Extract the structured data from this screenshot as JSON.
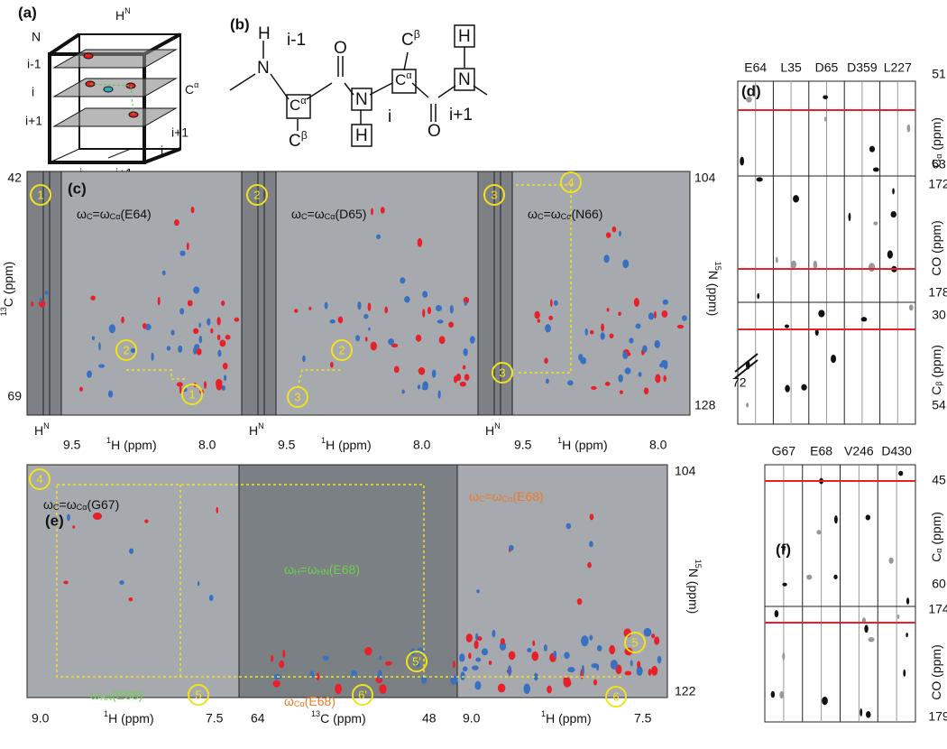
{
  "panel_a": {
    "label": "(a)",
    "hn": [
      "H",
      "N"
    ],
    "n": "N",
    "layers": [
      "i-1",
      "i",
      "i+1"
    ],
    "ca": [
      "C",
      "α"
    ],
    "side": [
      "i+1",
      "i"
    ],
    "bottom": [
      "i",
      "i+1"
    ]
  },
  "panel_b": {
    "label": "(b)",
    "h1": "H",
    "n1": "N",
    "res1": "i-1",
    "o1": "O",
    "cb1": [
      "C",
      "β"
    ],
    "ca1": [
      "C",
      "α"
    ],
    "n2": "N",
    "h2": "H",
    "ca2": [
      "C",
      "α"
    ],
    "cb2": [
      "C",
      "β"
    ],
    "res2": "i",
    "o2": "O",
    "h3": "H",
    "n3": "N",
    "res3": "i+1"
  },
  "panel_c": {
    "label": "(c)",
    "titles": [
      [
        "ω",
        "C",
        "=ω",
        "Cα",
        "(E64)"
      ],
      [
        "ω",
        "C",
        "=ω",
        "Cα",
        "(D65)"
      ],
      [
        "ω",
        "C",
        "=ω",
        "Cα",
        "(N66)"
      ]
    ],
    "hn": [
      [
        "H",
        "N"
      ],
      [
        "H",
        "N"
      ],
      [
        "H",
        "N"
      ]
    ],
    "x_ticks": [
      [
        "9.5",
        "8.0"
      ],
      [
        "9.5",
        "8.0"
      ],
      [
        "9.5",
        "8.0"
      ]
    ],
    "x_labels": [
      [
        "1",
        "H (ppm)"
      ],
      [
        "1",
        "H (ppm)"
      ],
      [
        "1",
        "H (ppm)"
      ]
    ],
    "y_left_ticks": [
      "42",
      "69"
    ],
    "y_left_label": [
      "13",
      "C (ppm)"
    ],
    "y_right_ticks": [
      "104",
      "128"
    ],
    "y_right_label": [
      "15",
      "N (ppm)"
    ],
    "markers": [
      "1",
      "2",
      "1",
      "2",
      "2",
      "3",
      "3",
      "4",
      "3"
    ]
  },
  "panel_e": {
    "label": "(e)",
    "title_left": [
      "ω",
      "C",
      "=ω",
      "Cα",
      "(G67)"
    ],
    "title_right": [
      "ω",
      "C",
      "=ω",
      "Cα",
      "(E68)"
    ],
    "title_mid": [
      "ω",
      "H",
      "=ω",
      "HN",
      "(E68)"
    ],
    "note_hn": [
      "ω",
      "HN",
      "(E68)"
    ],
    "note_ca": [
      "ω",
      "Cα",
      "(E68)"
    ],
    "x_ticks": [
      "9.0",
      "7.5",
      "64",
      "48",
      "9.0",
      "7.5"
    ],
    "x_labels": [
      [
        "1",
        "H (ppm)"
      ],
      [
        "13",
        "C (ppm)"
      ],
      [
        "1",
        "H (ppm)"
      ]
    ],
    "y_right_ticks": [
      "104",
      "122"
    ],
    "y_right_label": [
      "15",
      "N (ppm)"
    ],
    "markers": [
      "4",
      "5",
      "5'",
      "6'",
      "5",
      "6"
    ]
  },
  "panel_d": {
    "label": "(d)",
    "columns": [
      "E64",
      "L35",
      "D65",
      "D359",
      "L227"
    ],
    "ticks": [
      "51",
      "63",
      "172",
      "178",
      "30",
      "54"
    ],
    "axis_labels": [
      [
        "C",
        "α",
        " (ppm)"
      ],
      [
        "CO (ppm)"
      ],
      [
        "C",
        "β",
        " (ppm)"
      ]
    ],
    "break": "72"
  },
  "panel_f": {
    "label": "(f)",
    "columns": [
      "G67",
      "E68",
      "V246",
      "D430"
    ],
    "ticks": [
      "45",
      "60",
      "174",
      "179"
    ],
    "axis_labels": [
      [
        "C",
        "α",
        " (ppm)"
      ],
      [
        "CO (ppm)"
      ]
    ]
  }
}
